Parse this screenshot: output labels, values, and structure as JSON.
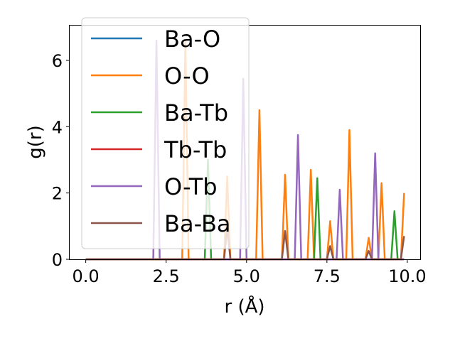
{
  "chart_data": {
    "type": "line",
    "title": "",
    "xlabel": "r (Å)",
    "ylabel": "g(r)",
    "xlim": [
      -0.5,
      10.4
    ],
    "ylim": [
      0,
      7.05
    ],
    "xticks": [
      0.0,
      2.5,
      5.0,
      7.5,
      10.0
    ],
    "xtick_labels": [
      "0.0",
      "2.5",
      "5.0",
      "7.5",
      "10.0"
    ],
    "yticks": [
      0,
      2,
      4,
      6
    ],
    "ytick_labels": [
      "0",
      "2",
      "4",
      "6"
    ],
    "grid": false,
    "legend_position": "top-left",
    "series": [
      {
        "name": "Ba-O",
        "color": "#1f77b4",
        "x": [
          0,
          9.9
        ],
        "y": [
          0,
          0
        ]
      },
      {
        "name": "O-O",
        "color": "#ff7f0e",
        "x": [
          0,
          3.0,
          3.1,
          3.2,
          4.3,
          4.4,
          4.5,
          5.3,
          5.4,
          5.5,
          6.1,
          6.2,
          6.3,
          6.9,
          7.0,
          7.1,
          7.5,
          7.6,
          7.7,
          8.1,
          8.2,
          8.3,
          8.7,
          8.8,
          8.9,
          9.1,
          9.2,
          9.3,
          9.8,
          9.9
        ],
        "y": [
          0,
          0,
          6.6,
          0,
          0,
          2.5,
          0,
          0,
          4.5,
          0,
          0,
          2.55,
          0,
          0,
          2.7,
          0,
          0,
          1.15,
          0,
          0,
          3.9,
          0,
          0,
          0.65,
          0,
          0,
          2.3,
          0,
          0,
          2.0
        ]
      },
      {
        "name": "Ba-Tb",
        "color": "#2ca02c",
        "x": [
          0,
          3.7,
          3.8,
          3.9,
          7.1,
          7.2,
          7.3,
          9.5,
          9.6,
          9.7,
          9.9
        ],
        "y": [
          0,
          0,
          3.0,
          0,
          0,
          2.45,
          0,
          0,
          1.45,
          0,
          0
        ]
      },
      {
        "name": "Tb-Tb",
        "color": "#d62728",
        "x": [
          0,
          9.9
        ],
        "y": [
          0,
          0
        ]
      },
      {
        "name": "O-Tb",
        "color": "#9467bd",
        "x": [
          0,
          2.1,
          2.2,
          2.3,
          4.8,
          4.9,
          5.0,
          6.5,
          6.6,
          6.7,
          7.8,
          7.9,
          8.0,
          8.9,
          9.0,
          9.1,
          9.9
        ],
        "y": [
          0,
          0,
          6.6,
          0,
          0,
          5.45,
          0,
          0,
          3.75,
          0,
          0,
          2.1,
          0,
          0,
          3.2,
          0,
          0
        ]
      },
      {
        "name": "Ba-Ba",
        "color": "#8c564b",
        "x": [
          0,
          4.3,
          4.4,
          4.5,
          6.1,
          6.2,
          6.3,
          7.5,
          7.6,
          7.7,
          8.7,
          8.8,
          8.9,
          9.8,
          9.9
        ],
        "y": [
          0,
          0,
          0.95,
          0,
          0,
          0.85,
          0,
          0,
          0.4,
          0,
          0,
          0.25,
          0,
          0,
          0.7
        ]
      }
    ]
  }
}
